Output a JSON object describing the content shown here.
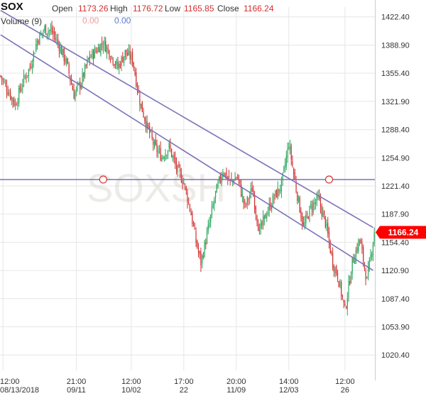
{
  "header": {
    "symbol": "SOX",
    "open_label": "Open",
    "open_value": "1173.26",
    "high_label": "High",
    "high_value": "1176.72",
    "low_label": "Low",
    "low_value": "1165.85",
    "close_label": "Close",
    "close_value": "1166.24",
    "volume_label": "Volume (9)",
    "volume_value_a": "0.00",
    "volume_value_b": "0.00"
  },
  "watermark": "SOXSH",
  "colors": {
    "up": "#26a65b",
    "down": "#d32f2f",
    "trendline": "#7b73b8",
    "last_price_bg": "#ff0000",
    "grid": "#e6e6e6"
  },
  "chart_data": {
    "type": "candlestick",
    "title": "SOX",
    "y_ticks": [
      1422.4,
      1388.9,
      1355.4,
      1321.9,
      1288.4,
      1254.9,
      1221.4,
      1187.9,
      1154.4,
      1120.9,
      1087.4,
      1053.9,
      1020.4
    ],
    "y_tick_labels": [
      "1422.40",
      "1388.90",
      "1355.40",
      "1321.90",
      "1288.40",
      "1254.90",
      "1221.40",
      "1187.90",
      "1154.40",
      "1120.90",
      "1087.40",
      "1053.90",
      "1020.40"
    ],
    "ylim": [
      1002,
      1434
    ],
    "x_ticks": [
      {
        "line1": "12:00",
        "line2": "08/13/2018",
        "bar": 2
      },
      {
        "line1": "21:00",
        "line2": "09/11",
        "bar": 62
      },
      {
        "line1": "12:00",
        "line2": "10/02",
        "bar": 107
      },
      {
        "line1": "17:00",
        "line2": "22",
        "bar": 150
      },
      {
        "line1": "20:00",
        "line2": "11/09",
        "bar": 193
      },
      {
        "line1": "14:00",
        "line2": "12/03",
        "bar": 236
      },
      {
        "line1": "12:00",
        "line2": "26",
        "bar": 282
      }
    ],
    "last_price": 1166.24,
    "last_price_label": "1166.24",
    "horizontal_line": {
      "value": 1229,
      "markers_at_bars": [
        84,
        269
      ]
    },
    "channel_lines": [
      {
        "from": [
          0,
          1430
        ],
        "to": [
          305,
          1172
        ]
      },
      {
        "from": [
          0,
          1401
        ],
        "to": [
          305,
          1121
        ]
      }
    ],
    "anchor_points": [
      [
        0,
        1352
      ],
      [
        6,
        1335
      ],
      [
        12,
        1318
      ],
      [
        18,
        1345
      ],
      [
        24,
        1362
      ],
      [
        30,
        1395
      ],
      [
        36,
        1408
      ],
      [
        42,
        1405
      ],
      [
        48,
        1388
      ],
      [
        54,
        1368
      ],
      [
        60,
        1330
      ],
      [
        66,
        1345
      ],
      [
        72,
        1372
      ],
      [
        78,
        1382
      ],
      [
        84,
        1392
      ],
      [
        90,
        1378
      ],
      [
        96,
        1362
      ],
      [
        102,
        1380
      ],
      [
        108,
        1372
      ],
      [
        114,
        1322
      ],
      [
        120,
        1292
      ],
      [
        126,
        1268
      ],
      [
        132,
        1256
      ],
      [
        138,
        1268
      ],
      [
        144,
        1242
      ],
      [
        150,
        1226
      ],
      [
        156,
        1188
      ],
      [
        160,
        1155
      ],
      [
        164,
        1130
      ],
      [
        170,
        1170
      ],
      [
        176,
        1212
      ],
      [
        182,
        1240
      ],
      [
        188,
        1226
      ],
      [
        194,
        1232
      ],
      [
        200,
        1196
      ],
      [
        206,
        1218
      ],
      [
        212,
        1166
      ],
      [
        218,
        1190
      ],
      [
        224,
        1208
      ],
      [
        230,
        1222
      ],
      [
        236,
        1272
      ],
      [
        242,
        1218
      ],
      [
        248,
        1172
      ],
      [
        254,
        1196
      ],
      [
        260,
        1206
      ],
      [
        266,
        1178
      ],
      [
        272,
        1130
      ],
      [
        276,
        1115
      ],
      [
        282,
        1073
      ],
      [
        288,
        1130
      ],
      [
        294,
        1158
      ],
      [
        300,
        1108
      ],
      [
        306,
        1166
      ]
    ],
    "bar_count": 307
  }
}
